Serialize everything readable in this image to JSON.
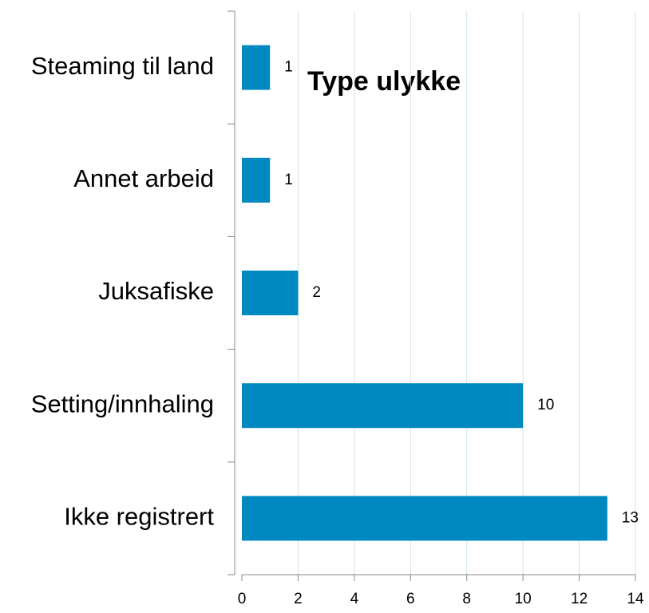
{
  "chart_data": {
    "type": "bar",
    "orientation": "horizontal",
    "title": "Type ulykke",
    "categories": [
      "Steaming til land",
      "Annet arbeid",
      "Juksafiske",
      "Setting/innhaling",
      "Ikke registrert"
    ],
    "values": [
      1,
      1,
      2,
      10,
      13
    ],
    "color": "#0088c0",
    "xlim": [
      0,
      14
    ],
    "xticks": [
      0,
      2,
      4,
      6,
      8,
      10,
      12,
      14
    ],
    "grid": true
  }
}
